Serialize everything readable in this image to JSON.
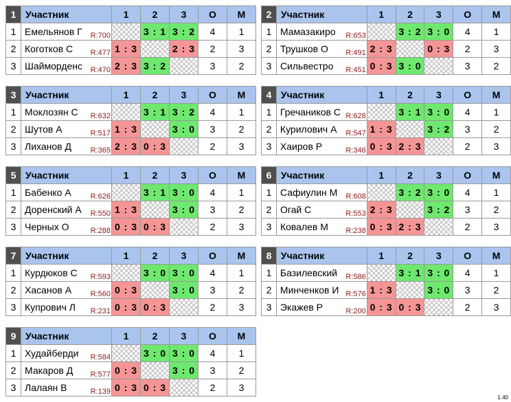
{
  "header": {
    "participant": "Участник",
    "cols": [
      "1",
      "2",
      "3"
    ],
    "points": "О",
    "place": "М"
  },
  "groups": [
    {
      "number": "1",
      "players": [
        {
          "n": "1",
          "name": "Емельянов Г",
          "rating": "R:700",
          "scores": [
            "",
            "3 : 1",
            "3 : 2"
          ],
          "points": "4",
          "place": "1"
        },
        {
          "n": "2",
          "name": "Коготков С",
          "rating": "R:477",
          "scores": [
            "1 : 3",
            "",
            "2 : 3"
          ],
          "points": "2",
          "place": "3"
        },
        {
          "n": "3",
          "name": "Шайморденс",
          "rating": "R:470",
          "scores": [
            "2 : 3",
            "3 : 2",
            ""
          ],
          "points": "3",
          "place": "2"
        }
      ]
    },
    {
      "number": "2",
      "players": [
        {
          "n": "1",
          "name": "Мамазакиро",
          "rating": "R:653",
          "scores": [
            "",
            "3 : 2",
            "3 : 0"
          ],
          "points": "4",
          "place": "1"
        },
        {
          "n": "2",
          "name": "Трушков О",
          "rating": "R:491",
          "scores": [
            "2 : 3",
            "",
            "0 : 3"
          ],
          "points": "2",
          "place": "3"
        },
        {
          "n": "3",
          "name": "Сильвестро",
          "rating": "R:451",
          "scores": [
            "0 : 3",
            "3 : 0",
            ""
          ],
          "points": "3",
          "place": "2"
        }
      ]
    },
    {
      "number": "3",
      "players": [
        {
          "n": "1",
          "name": "Моклозян С",
          "rating": "R:632",
          "scores": [
            "",
            "3 : 1",
            "3 : 2"
          ],
          "points": "4",
          "place": "1"
        },
        {
          "n": "2",
          "name": "Шутов А",
          "rating": "R:517",
          "scores": [
            "1 : 3",
            "",
            "3 : 0"
          ],
          "points": "3",
          "place": "2"
        },
        {
          "n": "3",
          "name": "Лиханов Д",
          "rating": "R:365",
          "scores": [
            "2 : 3",
            "0 : 3",
            ""
          ],
          "points": "2",
          "place": "3"
        }
      ]
    },
    {
      "number": "4",
      "players": [
        {
          "n": "1",
          "name": "Гречаников С",
          "rating": "R:628",
          "scores": [
            "",
            "3 : 1",
            "3 : 0"
          ],
          "points": "4",
          "place": "1"
        },
        {
          "n": "2",
          "name": "Курилович А",
          "rating": "R:547",
          "scores": [
            "1 : 3",
            "",
            "3 : 2"
          ],
          "points": "3",
          "place": "2"
        },
        {
          "n": "3",
          "name": "Хаиров Р",
          "rating": "R:346",
          "scores": [
            "0 : 3",
            "2 : 3",
            ""
          ],
          "points": "2",
          "place": "3"
        }
      ]
    },
    {
      "number": "5",
      "players": [
        {
          "n": "1",
          "name": "Бабенко А",
          "rating": "R:626",
          "scores": [
            "",
            "3 : 1",
            "3 : 0"
          ],
          "points": "4",
          "place": "1"
        },
        {
          "n": "2",
          "name": "Доренский А",
          "rating": "R:550",
          "scores": [
            "1 : 3",
            "",
            "3 : 0"
          ],
          "points": "3",
          "place": "2"
        },
        {
          "n": "3",
          "name": "Черных О",
          "rating": "R:288",
          "scores": [
            "0 : 3",
            "0 : 3",
            ""
          ],
          "points": "2",
          "place": "3"
        }
      ]
    },
    {
      "number": "6",
      "players": [
        {
          "n": "1",
          "name": "Сафиулин М",
          "rating": "R:608",
          "scores": [
            "",
            "3 : 2",
            "3 : 0"
          ],
          "points": "4",
          "place": "1"
        },
        {
          "n": "2",
          "name": "Огай С",
          "rating": "R:553",
          "scores": [
            "2 : 3",
            "",
            "3 : 2"
          ],
          "points": "3",
          "place": "2"
        },
        {
          "n": "3",
          "name": "Ковалев М",
          "rating": "R:238",
          "scores": [
            "0 : 3",
            "2 : 3",
            ""
          ],
          "points": "2",
          "place": "3"
        }
      ]
    },
    {
      "number": "7",
      "players": [
        {
          "n": "1",
          "name": "Курдюков С",
          "rating": "R:593",
          "scores": [
            "",
            "3 : 0",
            "3 : 0"
          ],
          "points": "4",
          "place": "1"
        },
        {
          "n": "2",
          "name": "Хасанов А",
          "rating": "R:560",
          "scores": [
            "0 : 3",
            "",
            "3 : 0"
          ],
          "points": "3",
          "place": "2"
        },
        {
          "n": "3",
          "name": "Купрович Л",
          "rating": "R:231",
          "scores": [
            "0 : 3",
            "0 : 3",
            ""
          ],
          "points": "2",
          "place": "3"
        }
      ]
    },
    {
      "number": "8",
      "players": [
        {
          "n": "1",
          "name": "Базилевский",
          "rating": "R:586",
          "scores": [
            "",
            "3 : 1",
            "3 : 0"
          ],
          "points": "4",
          "place": "1"
        },
        {
          "n": "2",
          "name": "Минченков И",
          "rating": "R:576",
          "scores": [
            "1 : 3",
            "",
            "3 : 0"
          ],
          "points": "3",
          "place": "2"
        },
        {
          "n": "3",
          "name": "Экажев Р",
          "rating": "R:200",
          "scores": [
            "0 : 3",
            "0 : 3",
            ""
          ],
          "points": "2",
          "place": "3"
        }
      ]
    },
    {
      "number": "9",
      "players": [
        {
          "n": "1",
          "name": "Худайберди",
          "rating": "R:584",
          "scores": [
            "",
            "3 : 0",
            "3 : 0"
          ],
          "points": "4",
          "place": "1"
        },
        {
          "n": "2",
          "name": "Макаров Д",
          "rating": "R:577",
          "scores": [
            "0 : 3",
            "",
            "3 : 0"
          ],
          "points": "3",
          "place": "2"
        },
        {
          "n": "3",
          "name": "Лалаян В",
          "rating": "R:139",
          "scores": [
            "0 : 3",
            "0 : 3",
            ""
          ],
          "points": "2",
          "place": "3"
        }
      ]
    }
  ],
  "version": "1.40"
}
